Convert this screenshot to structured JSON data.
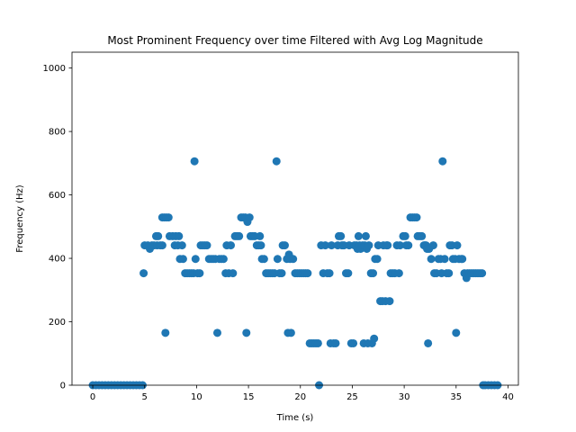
{
  "chart_data": {
    "type": "scatter",
    "title": "Most Prominent Frequency over time Filtered with Avg Log Magnitude",
    "xlabel": "Time (s)",
    "ylabel": "Frequency (Hz)",
    "xlim": [
      -2,
      41
    ],
    "ylim": [
      0,
      1050
    ],
    "xticks": [
      0,
      5,
      10,
      15,
      20,
      25,
      30,
      35,
      40
    ],
    "yticks": [
      0,
      200,
      400,
      600,
      800,
      1000
    ],
    "grid": false,
    "marker_color": "#1f77b4",
    "points": [
      [
        0.0,
        0
      ],
      [
        0.3,
        0
      ],
      [
        0.6,
        0
      ],
      [
        0.9,
        0
      ],
      [
        1.2,
        0
      ],
      [
        1.5,
        0
      ],
      [
        1.8,
        0
      ],
      [
        2.1,
        0
      ],
      [
        2.4,
        0
      ],
      [
        2.7,
        0
      ],
      [
        3.0,
        0
      ],
      [
        3.3,
        0
      ],
      [
        3.6,
        0
      ],
      [
        3.9,
        0
      ],
      [
        4.2,
        0
      ],
      [
        4.5,
        0
      ],
      [
        4.8,
        0
      ],
      [
        4.9,
        353
      ],
      [
        5.0,
        441
      ],
      [
        5.3,
        441
      ],
      [
        5.5,
        430
      ],
      [
        5.7,
        441
      ],
      [
        5.9,
        441
      ],
      [
        6.1,
        470
      ],
      [
        6.2,
        441
      ],
      [
        6.3,
        470
      ],
      [
        6.5,
        441
      ],
      [
        6.7,
        441
      ],
      [
        6.7,
        529
      ],
      [
        6.9,
        529
      ],
      [
        7.0,
        165
      ],
      [
        7.1,
        529
      ],
      [
        7.3,
        529
      ],
      [
        7.4,
        470
      ],
      [
        7.7,
        470
      ],
      [
        7.9,
        441
      ],
      [
        8.0,
        470
      ],
      [
        8.2,
        441
      ],
      [
        8.3,
        470
      ],
      [
        8.4,
        398
      ],
      [
        8.6,
        441
      ],
      [
        8.7,
        398
      ],
      [
        8.9,
        353
      ],
      [
        9.1,
        353
      ],
      [
        9.3,
        353
      ],
      [
        9.5,
        353
      ],
      [
        9.7,
        353
      ],
      [
        9.8,
        706
      ],
      [
        9.9,
        398
      ],
      [
        10.1,
        353
      ],
      [
        10.3,
        353
      ],
      [
        10.4,
        441
      ],
      [
        10.6,
        441
      ],
      [
        10.8,
        441
      ],
      [
        11.0,
        441
      ],
      [
        11.2,
        398
      ],
      [
        11.4,
        398
      ],
      [
        11.6,
        398
      ],
      [
        11.8,
        398
      ],
      [
        12.0,
        165
      ],
      [
        12.2,
        398
      ],
      [
        12.4,
        398
      ],
      [
        12.6,
        398
      ],
      [
        12.8,
        353
      ],
      [
        12.9,
        441
      ],
      [
        13.1,
        353
      ],
      [
        13.3,
        441
      ],
      [
        13.5,
        353
      ],
      [
        13.7,
        470
      ],
      [
        13.9,
        470
      ],
      [
        14.1,
        470
      ],
      [
        14.3,
        529
      ],
      [
        14.5,
        529
      ],
      [
        14.7,
        529
      ],
      [
        14.8,
        165
      ],
      [
        14.9,
        515
      ],
      [
        15.1,
        529
      ],
      [
        15.2,
        470
      ],
      [
        15.4,
        470
      ],
      [
        15.6,
        470
      ],
      [
        15.8,
        441
      ],
      [
        16.0,
        441
      ],
      [
        16.1,
        470
      ],
      [
        16.2,
        441
      ],
      [
        16.3,
        398
      ],
      [
        16.5,
        398
      ],
      [
        16.7,
        353
      ],
      [
        16.9,
        353
      ],
      [
        17.1,
        353
      ],
      [
        17.3,
        353
      ],
      [
        17.5,
        353
      ],
      [
        17.7,
        706
      ],
      [
        17.8,
        398
      ],
      [
        18.0,
        353
      ],
      [
        18.2,
        353
      ],
      [
        18.3,
        441
      ],
      [
        18.5,
        441
      ],
      [
        18.7,
        398
      ],
      [
        18.8,
        165
      ],
      [
        18.9,
        412
      ],
      [
        19.0,
        398
      ],
      [
        19.1,
        165
      ],
      [
        19.3,
        398
      ],
      [
        19.5,
        353
      ],
      [
        19.7,
        353
      ],
      [
        19.9,
        353
      ],
      [
        20.1,
        353
      ],
      [
        20.3,
        353
      ],
      [
        20.5,
        353
      ],
      [
        20.7,
        353
      ],
      [
        20.9,
        132
      ],
      [
        21.1,
        132
      ],
      [
        21.3,
        132
      ],
      [
        21.5,
        132
      ],
      [
        21.7,
        132
      ],
      [
        21.8,
        0
      ],
      [
        22.0,
        441
      ],
      [
        22.2,
        353
      ],
      [
        22.4,
        441
      ],
      [
        22.6,
        353
      ],
      [
        22.8,
        353
      ],
      [
        22.9,
        132
      ],
      [
        23.0,
        441
      ],
      [
        23.2,
        132
      ],
      [
        23.4,
        132
      ],
      [
        23.6,
        441
      ],
      [
        23.7,
        470
      ],
      [
        23.9,
        470
      ],
      [
        24.0,
        441
      ],
      [
        24.2,
        441
      ],
      [
        24.4,
        353
      ],
      [
        24.6,
        353
      ],
      [
        24.7,
        441
      ],
      [
        24.9,
        132
      ],
      [
        25.1,
        132
      ],
      [
        25.2,
        441
      ],
      [
        25.4,
        441
      ],
      [
        25.5,
        430
      ],
      [
        25.6,
        470
      ],
      [
        25.7,
        441
      ],
      [
        25.8,
        430
      ],
      [
        26.0,
        441
      ],
      [
        26.1,
        132
      ],
      [
        26.2,
        441
      ],
      [
        26.3,
        470
      ],
      [
        26.4,
        430
      ],
      [
        26.5,
        132
      ],
      [
        26.6,
        441
      ],
      [
        26.8,
        353
      ],
      [
        26.9,
        132
      ],
      [
        27.0,
        353
      ],
      [
        27.1,
        147
      ],
      [
        27.2,
        398
      ],
      [
        27.4,
        398
      ],
      [
        27.5,
        441
      ],
      [
        27.7,
        265
      ],
      [
        27.9,
        265
      ],
      [
        28.0,
        441
      ],
      [
        28.2,
        265
      ],
      [
        28.3,
        441
      ],
      [
        28.4,
        441
      ],
      [
        28.6,
        265
      ],
      [
        28.7,
        353
      ],
      [
        28.9,
        353
      ],
      [
        29.1,
        353
      ],
      [
        29.3,
        441
      ],
      [
        29.5,
        353
      ],
      [
        29.6,
        441
      ],
      [
        29.9,
        470
      ],
      [
        30.1,
        470
      ],
      [
        30.2,
        441
      ],
      [
        30.4,
        441
      ],
      [
        30.6,
        529
      ],
      [
        30.8,
        529
      ],
      [
        31.0,
        529
      ],
      [
        31.2,
        529
      ],
      [
        31.3,
        470
      ],
      [
        31.5,
        470
      ],
      [
        31.7,
        470
      ],
      [
        31.9,
        441
      ],
      [
        32.0,
        441
      ],
      [
        32.1,
        441
      ],
      [
        32.2,
        430
      ],
      [
        32.3,
        132
      ],
      [
        32.4,
        430
      ],
      [
        32.6,
        398
      ],
      [
        32.8,
        441
      ],
      [
        32.9,
        353
      ],
      [
        33.1,
        353
      ],
      [
        33.3,
        398
      ],
      [
        33.5,
        398
      ],
      [
        33.6,
        353
      ],
      [
        33.7,
        706
      ],
      [
        33.9,
        398
      ],
      [
        34.1,
        353
      ],
      [
        34.3,
        353
      ],
      [
        34.4,
        441
      ],
      [
        34.6,
        441
      ],
      [
        34.7,
        398
      ],
      [
        34.9,
        398
      ],
      [
        35.0,
        165
      ],
      [
        35.1,
        441
      ],
      [
        35.3,
        398
      ],
      [
        35.5,
        398
      ],
      [
        35.6,
        398
      ],
      [
        35.8,
        353
      ],
      [
        36.0,
        338
      ],
      [
        36.1,
        353
      ],
      [
        36.3,
        353
      ],
      [
        36.5,
        353
      ],
      [
        36.7,
        353
      ],
      [
        36.9,
        353
      ],
      [
        37.1,
        353
      ],
      [
        37.3,
        353
      ],
      [
        37.5,
        353
      ],
      [
        37.6,
        0
      ],
      [
        37.8,
        0
      ],
      [
        38.1,
        0
      ],
      [
        38.4,
        0
      ],
      [
        38.7,
        0
      ],
      [
        39.0,
        0
      ]
    ]
  }
}
